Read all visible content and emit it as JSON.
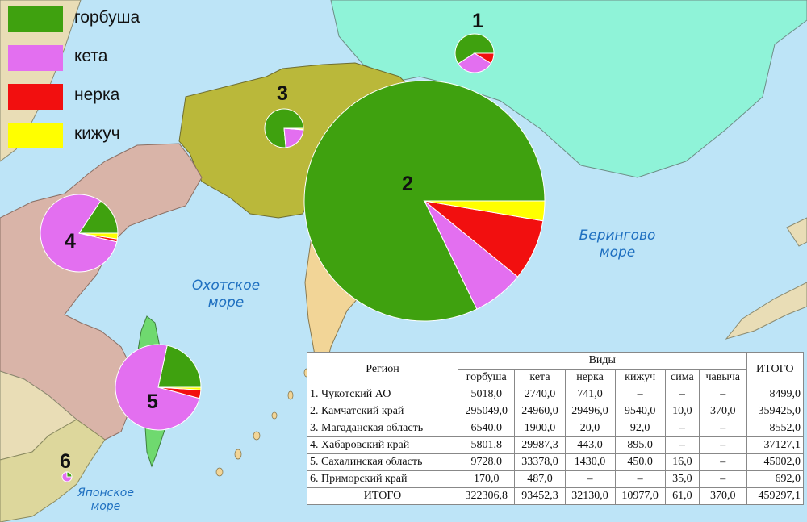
{
  "legend": [
    {
      "label": "горбуша",
      "color": "#3fa10f"
    },
    {
      "label": "кета",
      "color": "#e36ff0"
    },
    {
      "label": "нерка",
      "color": "#f20f0f"
    },
    {
      "label": "кижуч",
      "color": "#ffff00"
    }
  ],
  "seas": {
    "bering_line1": "Берингово",
    "bering_line2": "море",
    "okhotsk_line1": "Охотское",
    "okhotsk_line2": "море",
    "japan_line1": "Японское",
    "japan_line2": "море"
  },
  "region_numbers": [
    "1",
    "2",
    "3",
    "4",
    "5",
    "6"
  ],
  "colors": {
    "sea": "#bde4f7",
    "chukotka": "#8ff3d8",
    "magadan": "#bab83a",
    "khabarovsk": "#d9b4a8",
    "kamchatka": "#f2d597",
    "primorye": "#ddd79c",
    "sakhalin": "#6fd96f",
    "foreign": "#e9ddb6"
  },
  "table": {
    "header_region": "Регион",
    "header_species": "Виды",
    "header_total": "ИТОГО",
    "species": [
      "горбуша",
      "кета",
      "нерка",
      "кижуч",
      "сима",
      "чавыча"
    ],
    "rows": [
      {
        "region": "1. Чукотский АО",
        "values": [
          "5018,0",
          "2740,0",
          "741,0",
          "–",
          "–",
          "–"
        ],
        "total": "8499,0"
      },
      {
        "region": "2. Камчатский край",
        "values": [
          "295049,0",
          "24960,0",
          "29496,0",
          "9540,0",
          "10,0",
          "370,0"
        ],
        "total": "359425,0"
      },
      {
        "region": "3. Магаданская область",
        "values": [
          "6540,0",
          "1900,0",
          "20,0",
          "92,0",
          "–",
          "–"
        ],
        "total": "8552,0"
      },
      {
        "region": "4. Хабаровский край",
        "values": [
          "5801,8",
          "29987,3",
          "443,0",
          "895,0",
          "–",
          "–"
        ],
        "total": "37127,1"
      },
      {
        "region": "5. Сахалинская область",
        "values": [
          "9728,0",
          "33378,0",
          "1430,0",
          "450,0",
          "16,0",
          "–"
        ],
        "total": "45002,0"
      },
      {
        "region": "6. Приморский край",
        "values": [
          "170,0",
          "487,0",
          "–",
          "–",
          "35,0",
          "–"
        ],
        "total": "692,0"
      }
    ],
    "total_row": {
      "label": "ИТОГО",
      "values": [
        "322306,8",
        "93452,3",
        "32130,0",
        "10977,0",
        "61,0",
        "370,0"
      ],
      "total": "459297,1"
    }
  },
  "chart_data": [
    {
      "type": "pie",
      "region": "1",
      "categories": [
        "горбуша",
        "кета",
        "нерка",
        "кижуч"
      ],
      "values": [
        5018.0,
        2740.0,
        741.0,
        0
      ]
    },
    {
      "type": "pie",
      "region": "2",
      "categories": [
        "горбуша",
        "кета",
        "нерка",
        "кижуч"
      ],
      "values": [
        295049.0,
        24960.0,
        29496.0,
        9540.0
      ]
    },
    {
      "type": "pie",
      "region": "3",
      "categories": [
        "горбуша",
        "кета",
        "нерка",
        "кижуч"
      ],
      "values": [
        6540.0,
        1900.0,
        20.0,
        92.0
      ]
    },
    {
      "type": "pie",
      "region": "4",
      "categories": [
        "горбуша",
        "кета",
        "нерка",
        "кижуч"
      ],
      "values": [
        5801.8,
        29987.3,
        443.0,
        895.0
      ]
    },
    {
      "type": "pie",
      "region": "5",
      "categories": [
        "горбуша",
        "кета",
        "нерка",
        "кижуч"
      ],
      "values": [
        9728.0,
        33378.0,
        1430.0,
        450.0
      ]
    },
    {
      "type": "pie",
      "region": "6",
      "categories": [
        "горбуша",
        "кета",
        "нерка",
        "кижуч"
      ],
      "values": [
        170.0,
        487.0,
        0,
        0
      ]
    }
  ]
}
